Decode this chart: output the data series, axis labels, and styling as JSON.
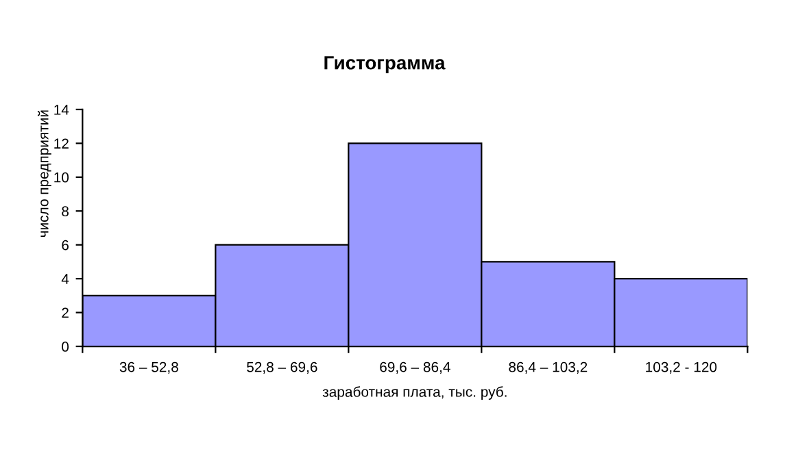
{
  "chart_data": {
    "type": "bar",
    "title": "Гистограмма",
    "xlabel": "заработная плата, тыс. руб.",
    "ylabel": "число предприятий",
    "categories": [
      "36 – 52,8",
      "52,8 – 69,6",
      "69,6 – 86,4",
      "86,4 – 103,2",
      "103,2 - 120"
    ],
    "values": [
      3,
      6,
      12,
      5,
      4
    ],
    "color": "#9999ff",
    "ylim": [
      0,
      14
    ],
    "yticks": [
      0,
      2,
      4,
      6,
      8,
      10,
      12,
      14
    ],
    "grid": false,
    "legend": false
  }
}
